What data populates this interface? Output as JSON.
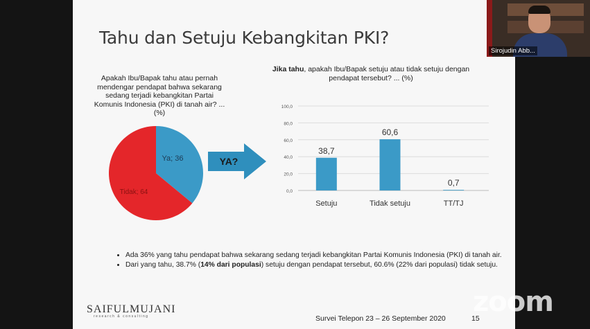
{
  "slide": {
    "title": "Tahu dan Setuju Kebangkitan PKI?",
    "left_question": "Apakah Ibu/Bapak tahu atau pernah mendengar pendapat bahwa sekarang sedang terjadi kebangkitan Partai Komunis Indonesia (PKI) di tanah air? ... (%)",
    "right_question_bold": "Jika tahu",
    "right_question_rest": ", apakah Ibu/Bapak setuju atau tidak setuju dengan pendapat tersebut? ... (%)",
    "arrow_label": "YA?",
    "bullets": [
      {
        "pre": "Ada 36% yang tahu pendapat bahwa sekarang sedang terjadi kebangkitan Partai Komunis Indonesia (PKI) di tanah air.",
        "bold": "",
        "post": ""
      },
      {
        "pre": "Dari yang tahu, 38.7% (",
        "bold": "14% dari populasi",
        "post": ") setuju dengan pendapat tersebut, 60.6% (22% dari populasi) tidak setuju."
      }
    ],
    "logo_main": "SAIFULMUJANI",
    "logo_sub": "research & consulting",
    "footer": "Survei Telepon 23 – 26 September 2020",
    "page_number": "15"
  },
  "zoom_watermark": "zoom",
  "participant_name": "Sirojudin Abb...",
  "colors": {
    "pie_yes": "#3b9ac7",
    "pie_no": "#e4262a",
    "bar": "#3b9ac7",
    "arrow": "#2f8fbd"
  },
  "chart_data": [
    {
      "type": "pie",
      "slices": [
        {
          "label": "Ya",
          "value": 36,
          "text": "Ya; 36"
        },
        {
          "label": "Tidak",
          "value": 64,
          "text": "Tidak; 64"
        }
      ]
    },
    {
      "type": "bar",
      "categories": [
        "Setuju",
        "Tidak setuju",
        "TT/TJ"
      ],
      "values": [
        38.7,
        60.6,
        0.7
      ],
      "value_labels": [
        "38,7",
        "60,6",
        "0,7"
      ],
      "ylim": [
        0,
        100
      ],
      "yticks": [
        "0,0",
        "20,0",
        "40,0",
        "60,0",
        "80,0",
        "100,0"
      ],
      "grid": true
    }
  ]
}
